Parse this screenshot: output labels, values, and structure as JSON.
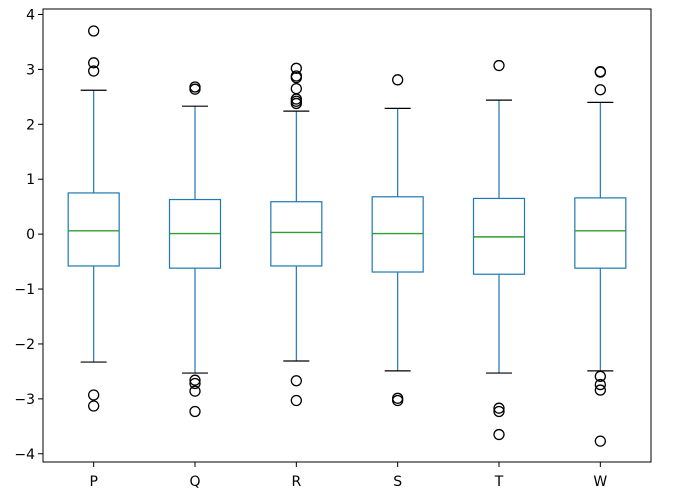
{
  "chart_data": {
    "type": "box",
    "title": "",
    "xlabel": "",
    "ylabel": "",
    "ylim": [
      -4.15,
      4.1
    ],
    "yticks": [
      -4,
      -3,
      -2,
      -1,
      0,
      1,
      2,
      3,
      4
    ],
    "ytick_labels": [
      "−4",
      "−3",
      "−2",
      "−1",
      "0",
      "1",
      "2",
      "3",
      "4"
    ],
    "categories": [
      "P",
      "Q",
      "R",
      "S",
      "T",
      "W"
    ],
    "grid": false,
    "colors": {
      "box": "#1f77b4",
      "median": "#2ca02c",
      "whisker_cap": "#000000",
      "flier": "#000000",
      "axes": "#000000"
    },
    "boxes": [
      {
        "label": "P",
        "whislo": -2.33,
        "q1": -0.58,
        "med": 0.06,
        "q3": 0.75,
        "whishi": 2.62,
        "fliers": [
          3.7,
          3.12,
          2.97,
          -2.93,
          -3.13
        ]
      },
      {
        "label": "Q",
        "whislo": -2.53,
        "q1": -0.62,
        "med": 0.01,
        "q3": 0.63,
        "whishi": 2.33,
        "fliers": [
          2.68,
          2.64,
          -2.66,
          -2.72,
          -2.86,
          -3.23
        ]
      },
      {
        "label": "R",
        "whislo": -2.31,
        "q1": -0.58,
        "med": 0.03,
        "q3": 0.59,
        "whishi": 2.24,
        "fliers": [
          3.02,
          2.88,
          2.85,
          2.65,
          2.46,
          2.42,
          2.38,
          -2.67,
          -3.03
        ]
      },
      {
        "label": "S",
        "whislo": -2.49,
        "q1": -0.69,
        "med": 0.01,
        "q3": 0.68,
        "whishi": 2.29,
        "fliers": [
          2.81,
          -2.99,
          -3.03
        ]
      },
      {
        "label": "T",
        "whislo": -2.53,
        "q1": -0.73,
        "med": -0.05,
        "q3": 0.65,
        "whishi": 2.44,
        "fliers": [
          3.07,
          -3.17,
          -3.23,
          -3.65
        ]
      },
      {
        "label": "W",
        "whislo": -2.49,
        "q1": -0.62,
        "med": 0.06,
        "q3": 0.66,
        "whishi": 2.4,
        "fliers": [
          2.96,
          2.95,
          2.63,
          -2.59,
          -2.74,
          -2.84,
          -3.77
        ]
      }
    ]
  }
}
